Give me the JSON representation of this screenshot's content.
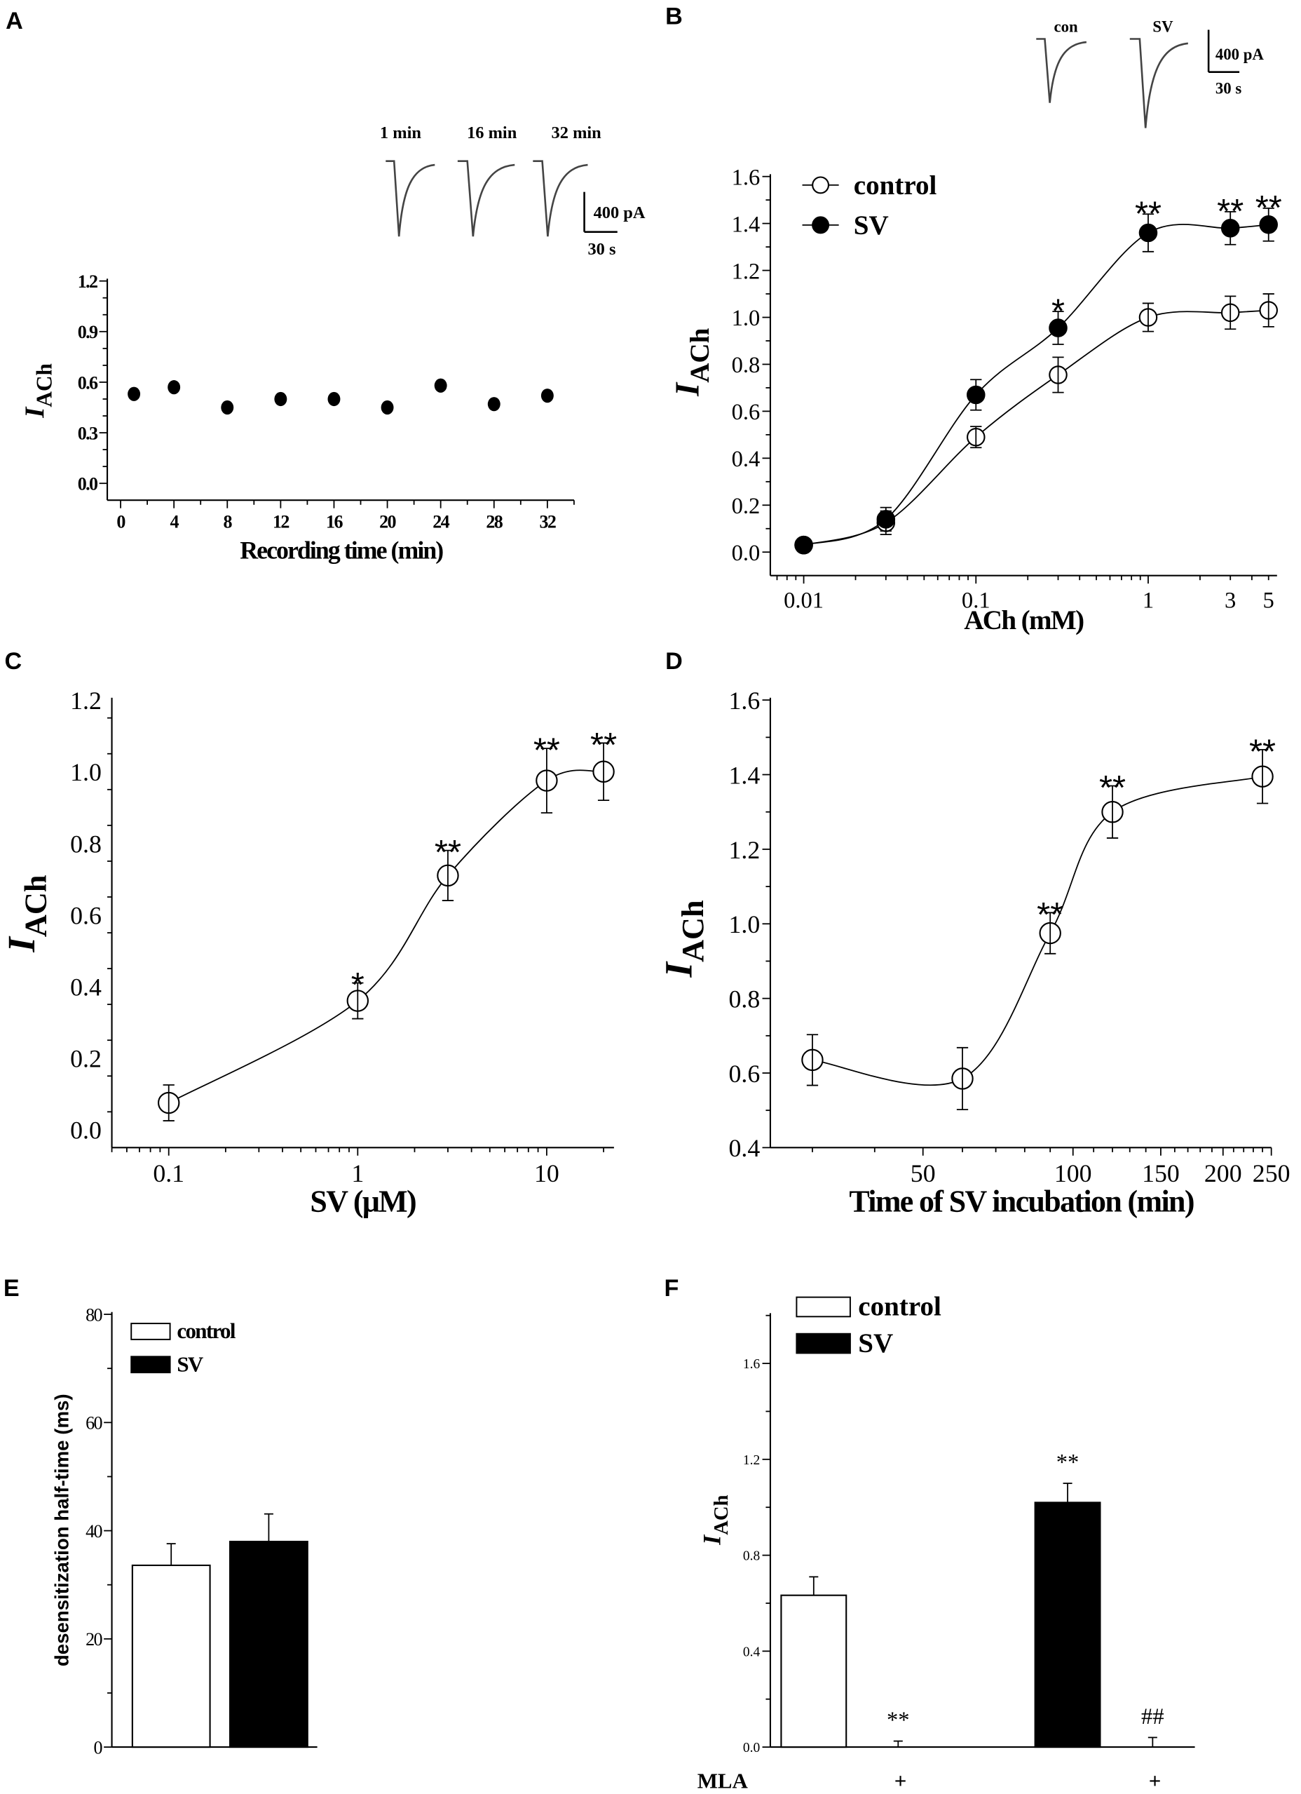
{
  "chart_data": [
    {
      "panel": "A",
      "type": "scatter",
      "xlabel": "Recording time (min)",
      "ylabel": "I",
      "ylabel_sub": "ACh",
      "x": [
        1,
        4,
        8,
        12,
        16,
        20,
        24,
        28,
        32
      ],
      "y": [
        0.53,
        0.57,
        0.45,
        0.5,
        0.5,
        0.45,
        0.58,
        0.47,
        0.52
      ],
      "xlim": [
        -1,
        34
      ],
      "ylim": [
        -0.1,
        1.2
      ],
      "xticks": [
        0,
        4,
        8,
        12,
        16,
        20,
        24,
        28,
        32
      ],
      "xtick_labels": [
        "0",
        "4",
        "8",
        "12",
        "16",
        "20",
        "24",
        "28",
        "32"
      ],
      "yticks": [
        0,
        0.3,
        0.6,
        0.9,
        1.2
      ],
      "ytick_labels": [
        "0.0",
        "0.3",
        "0.6",
        "0.9",
        "1.2"
      ],
      "inset": {
        "trace_labels": [
          "1 min",
          "16 min",
          "32 min"
        ],
        "scale_current": "400 pA",
        "scale_time": "30 s"
      }
    },
    {
      "panel": "B",
      "type": "line",
      "xscale": "log",
      "xlabel": "ACh (mM)",
      "ylabel": "I",
      "ylabel_sub": "ACh",
      "x": [
        0.01,
        0.03,
        0.1,
        0.3,
        1,
        3,
        5
      ],
      "series": [
        {
          "name": "control",
          "marker": "open-circle",
          "y": [
            0.03,
            0.125,
            0.49,
            0.755,
            1.0,
            1.02,
            1.03
          ],
          "err": [
            0,
            0.05,
            0.045,
            0.075,
            0.06,
            0.07,
            0.07
          ]
        },
        {
          "name": "SV",
          "marker": "filled-circle",
          "y": [
            0.03,
            0.14,
            0.67,
            0.955,
            1.36,
            1.38,
            1.395
          ],
          "err": [
            0,
            0.05,
            0.065,
            0.07,
            0.08,
            0.07,
            0.07
          ]
        }
      ],
      "annotations": [
        {
          "x": 0.3,
          "text": "*"
        },
        {
          "x": 1,
          "text": "**"
        },
        {
          "x": 3,
          "text": "**"
        },
        {
          "x": 5,
          "text": "**"
        }
      ],
      "xlim": [
        0.0064,
        5.6
      ],
      "ylim": [
        -0.1,
        1.6
      ],
      "xticks": [
        0.01,
        0.1,
        1,
        3,
        5
      ],
      "xtick_labels": [
        "0.01",
        "0.1",
        "1",
        "3",
        "5"
      ],
      "yticks": [
        0,
        0.2,
        0.4,
        0.6,
        0.8,
        1.0,
        1.2,
        1.4,
        1.6
      ],
      "ytick_labels": [
        "0.0",
        "0.2",
        "0.4",
        "0.6",
        "0.8",
        "1.0",
        "1.2",
        "1.4",
        "1.6"
      ],
      "legend": [
        "control",
        "SV"
      ],
      "legend_position": "top-left",
      "inset": {
        "trace_labels": [
          "con",
          "SV"
        ],
        "scale_current": "400 pA",
        "scale_time": "30 s"
      }
    },
    {
      "panel": "C",
      "type": "line",
      "xscale": "log",
      "xlabel": "SV (μM)",
      "ylabel": "I",
      "ylabel_sub": "ACh",
      "x": [
        0.1,
        1,
        3,
        10,
        20
      ],
      "y": [
        0.075,
        0.36,
        0.71,
        0.975,
        1.0
      ],
      "err": [
        0.05,
        0.05,
        0.07,
        0.09,
        0.08
      ],
      "annotations": [
        {
          "x": 1,
          "text": "*"
        },
        {
          "x": 3,
          "text": "**"
        },
        {
          "x": 10,
          "text": "**"
        },
        {
          "x": 20,
          "text": "**"
        }
      ],
      "xlim": [
        0.05,
        22.7
      ],
      "ylim": [
        -0.05,
        1.2
      ],
      "xticks": [
        0.1,
        1,
        10
      ],
      "xtick_labels": [
        "0.1",
        "1",
        "10"
      ],
      "yticks": [
        0,
        0.2,
        0.4,
        0.6,
        0.8,
        1.0,
        1.2
      ],
      "ytick_labels": [
        "0.0",
        "0.2",
        "0.4",
        "0.6",
        "0.8",
        "1.0",
        "1.2"
      ]
    },
    {
      "panel": "D",
      "type": "line",
      "xscale": "log",
      "xlabel": "Time of SV incubation (min)",
      "ylabel": "I",
      "ylabel_sub": "ACh",
      "x": [
        30,
        60,
        90,
        120,
        240
      ],
      "y": [
        0.635,
        0.585,
        0.975,
        1.3,
        1.395
      ],
      "err": [
        0.068,
        0.083,
        0.055,
        0.07,
        0.072
      ],
      "annotations": [
        {
          "x": 90,
          "text": "**"
        },
        {
          "x": 120,
          "text": "**"
        },
        {
          "x": 240,
          "text": "**"
        }
      ],
      "xlim": [
        24.7,
        250
      ],
      "ylim": [
        0.4,
        1.6
      ],
      "xticks": [
        50,
        100,
        150,
        200,
        250
      ],
      "xtick_labels": [
        "50",
        "100",
        "150",
        "200",
        "250"
      ],
      "yticks": [
        0.4,
        0.6,
        0.8,
        1.0,
        1.2,
        1.4,
        1.6
      ],
      "ytick_labels": [
        "0.4",
        "0.6",
        "0.8",
        "1.0",
        "1.2",
        "1.4",
        "1.6"
      ]
    },
    {
      "panel": "E",
      "type": "bar",
      "ylabel": "desensitization half-time (ms)",
      "categories": [
        "control",
        "SV"
      ],
      "values": [
        33.6,
        38.0
      ],
      "err": [
        4.0,
        5.1
      ],
      "colors": [
        "#ffffff",
        "#000000"
      ],
      "ylim": [
        0,
        80
      ],
      "yticks": [
        0,
        20,
        40,
        60,
        80
      ],
      "ytick_labels": [
        "0",
        "20",
        "40",
        "60",
        "80"
      ],
      "legend": [
        "control",
        "SV"
      ],
      "legend_position": "top-left"
    },
    {
      "panel": "F",
      "type": "bar",
      "ylabel": "I",
      "ylabel_sub": "ACh",
      "bars": [
        {
          "series": "control",
          "value": 0.633,
          "err": 0.077,
          "annotation": "",
          "mla": ""
        },
        {
          "series": "control",
          "value": 0.0,
          "err": 0.025,
          "annotation": "**",
          "mla": "+"
        },
        {
          "series": "SV",
          "value": 1.02,
          "err": 0.08,
          "annotation": "**",
          "mla": ""
        },
        {
          "series": "SV",
          "value": 0.0,
          "err": 0.04,
          "annotation": "##",
          "mla": "+"
        }
      ],
      "row_label": "MLA",
      "colors": {
        "control": "#ffffff",
        "SV": "#000000"
      },
      "ylim": [
        0,
        1.8
      ],
      "yticks": [
        0,
        0.4,
        0.8,
        1.2,
        1.6
      ],
      "ytick_labels": [
        "0.0",
        "0.4",
        "0.8",
        "1.2",
        "1.6"
      ],
      "legend": [
        "control",
        "SV"
      ],
      "legend_position": "top-left"
    }
  ],
  "panel_letters": [
    "A",
    "B",
    "C",
    "D",
    "E",
    "F"
  ]
}
